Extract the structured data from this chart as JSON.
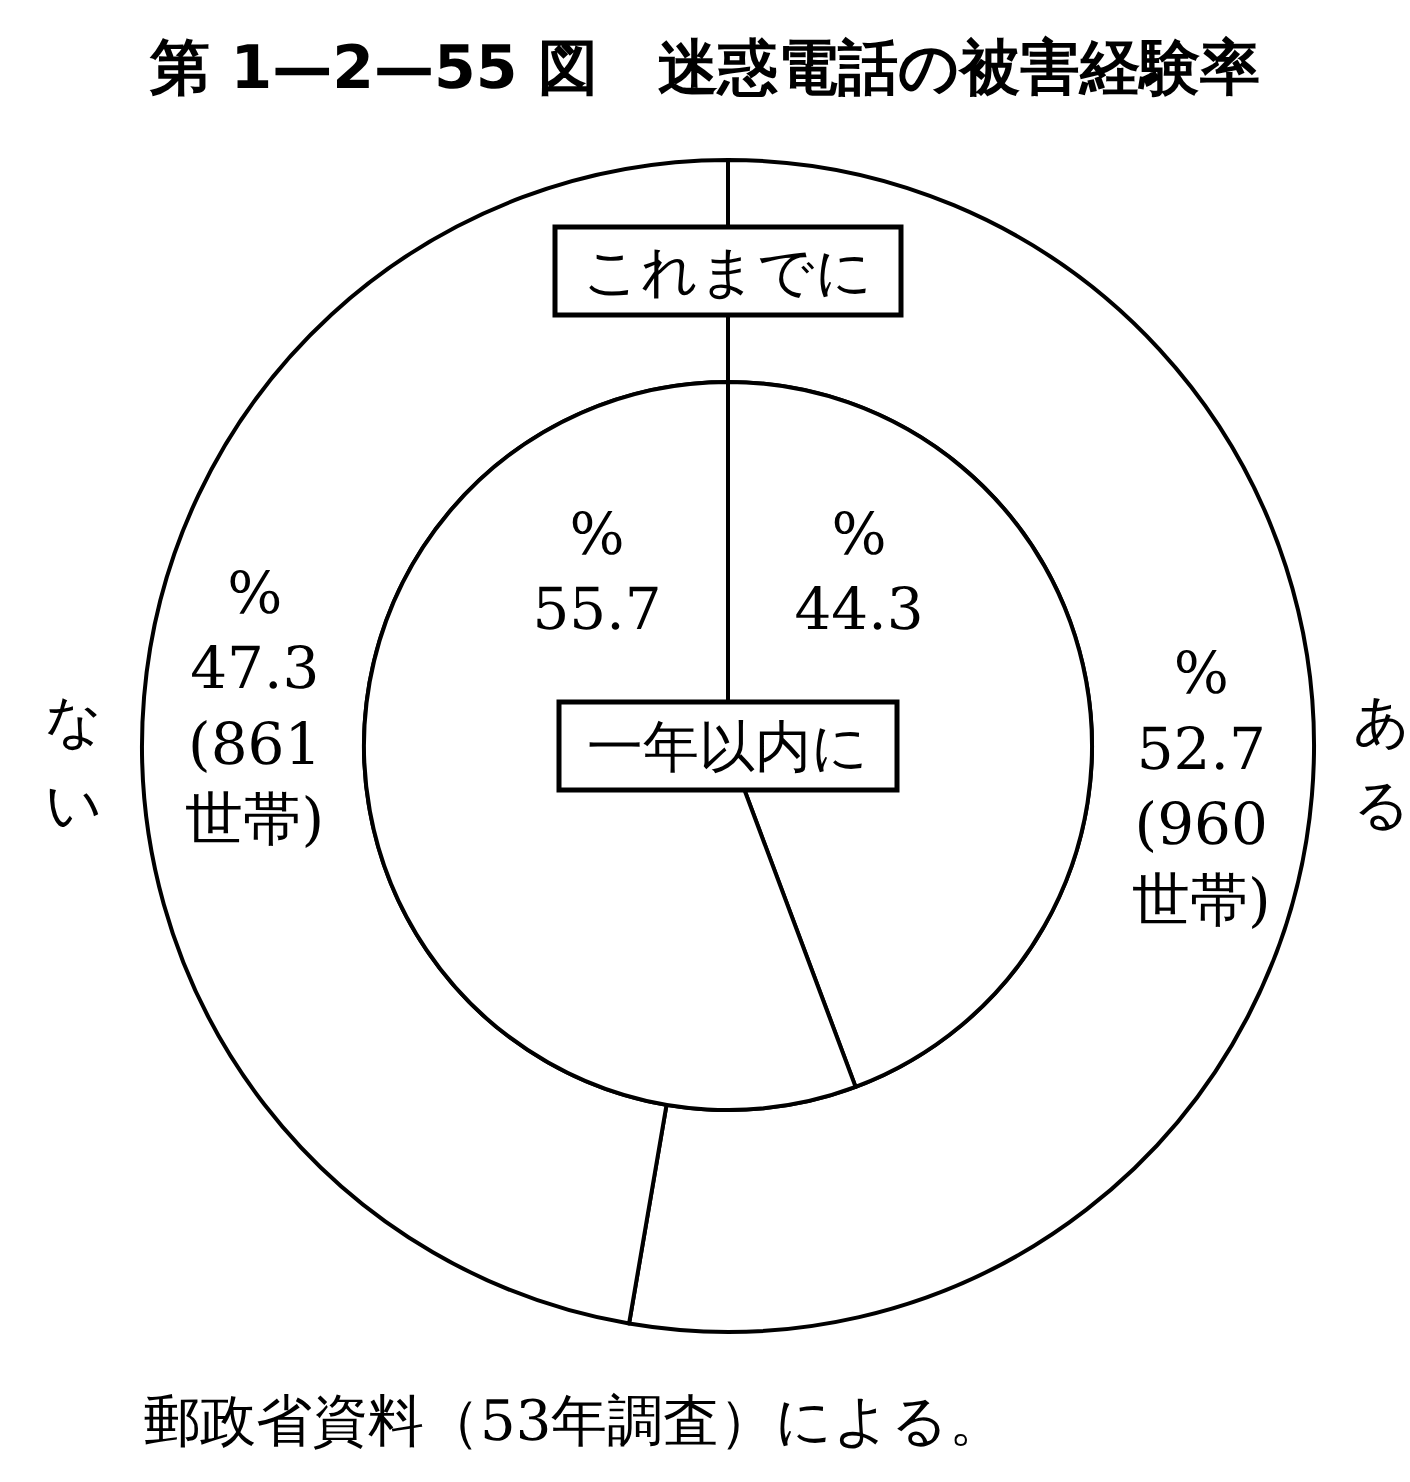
{
  "chart_data": {
    "type": "donut",
    "title": "第 1—2—55 図　迷惑電話の被害経験率",
    "categories": [
      "ある",
      "ない"
    ],
    "series": [
      {
        "name": "これまでに",
        "colors": [
          "#ffffff",
          "#ffffff"
        ],
        "values": [
          52.7,
          47.3
        ],
        "value_labels": [
          "%\n52.7\n(960\n世帯)",
          "%\n47.3\n(861\n世帯)"
        ]
      },
      {
        "name": "一年以内に",
        "type": "pie",
        "colors": [
          "#ffffff",
          "#ffffff"
        ],
        "values": [
          44.3,
          55.7
        ],
        "value_labels": [
          "%\n44.3",
          "%\n55.7"
        ]
      }
    ],
    "annotations": [
      "郵政省資料（53年調査）による。"
    ]
  }
}
